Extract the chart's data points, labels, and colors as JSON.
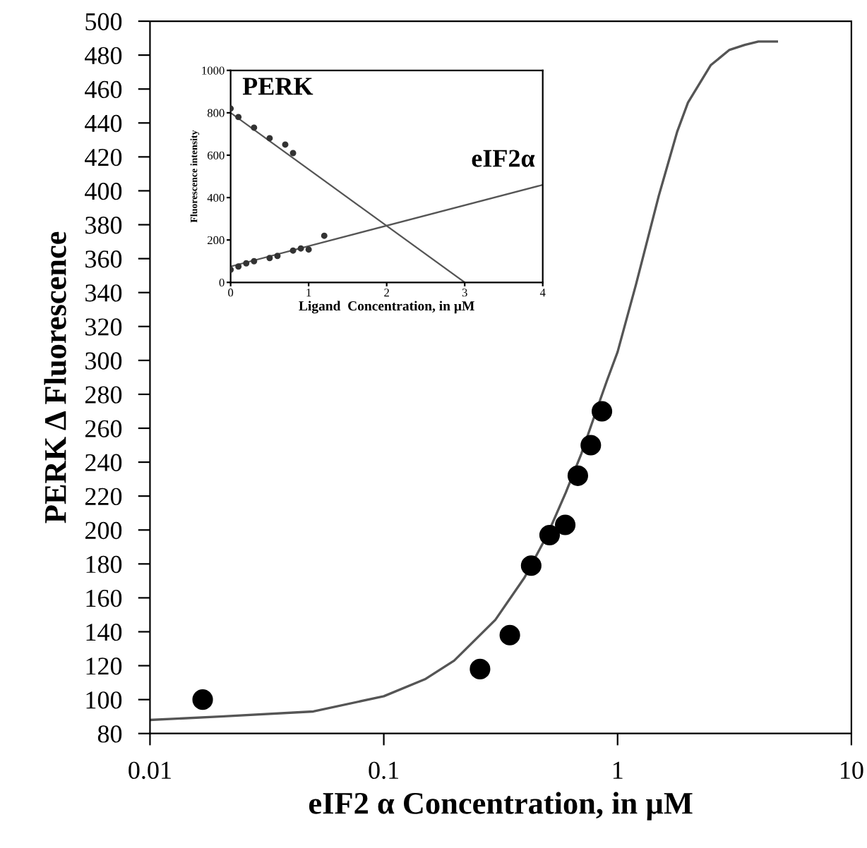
{
  "chart_data": [
    {
      "type": "scatter",
      "xlabel": "eIF2 α Concentration, in µM",
      "ylabel": "PERK Δ Fluorescence",
      "log": "x",
      "grid": false,
      "legend": false,
      "xlim": [
        0.01,
        10
      ],
      "xticks": [
        0.01,
        0.1,
        1,
        10
      ],
      "ylim": [
        80,
        500
      ],
      "yticks": [
        80,
        100,
        120,
        140,
        160,
        180,
        200,
        220,
        240,
        260,
        280,
        300,
        320,
        340,
        360,
        380,
        400,
        420,
        440,
        460,
        480,
        500
      ],
      "series": [
        {
          "color": "#000000",
          "marker": "circle",
          "x": [
            0.0168,
            0.258,
            0.346,
            0.427,
            0.512,
            0.597,
            0.676,
            0.768,
            0.857
          ],
          "values": [
            100,
            118,
            138,
            179,
            197,
            203,
            232,
            250,
            270
          ]
        },
        {
          "type": "line",
          "marker": "none",
          "color": "#555555",
          "x": [
            0.01,
            0.02,
            0.05,
            0.1,
            0.15,
            0.2,
            0.3,
            0.4,
            0.5,
            0.6,
            0.7,
            0.8,
            0.9,
            1.0,
            1.2,
            1.5,
            1.8,
            2.0,
            2.5,
            3.0,
            3.5,
            4.0,
            4.8
          ],
          "values": [
            88,
            90,
            93,
            102,
            112,
            123,
            147,
            172,
            197,
            222,
            245,
            268,
            288,
            305,
            345,
            397,
            435,
            452,
            474,
            483,
            486,
            488,
            488
          ]
        }
      ]
    },
    {
      "type": "scatter",
      "xlabel": "Ligand  Concentration, in µM",
      "ylabel": "Fluorescence intensity",
      "grid": false,
      "legend": false,
      "xlim": [
        0,
        4
      ],
      "xticks": [
        0,
        1,
        2,
        3,
        4
      ],
      "ylim": [
        0,
        1000
      ],
      "yticks": [
        0,
        200,
        400,
        600,
        800,
        1000
      ],
      "series": [
        {
          "color": "#333333",
          "marker": "circle",
          "x": [
            0,
            0.1,
            0.3,
            0.5,
            0.7,
            0.8
          ],
          "values": [
            820,
            780,
            730,
            680,
            650,
            610
          ]
        },
        {
          "color": "#333333",
          "marker": "circle",
          "x": [
            0,
            0.1,
            0.2,
            0.3,
            0.5,
            0.6,
            0.8,
            0.9,
            1.0,
            1.2
          ],
          "values": [
            60,
            75,
            90,
            100,
            115,
            125,
            150,
            160,
            155,
            220
          ]
        },
        {
          "type": "line",
          "marker": "none",
          "name": "PERK",
          "color": "#555555",
          "x": [
            0,
            3
          ],
          "values": [
            800,
            0
          ]
        },
        {
          "type": "line",
          "marker": "none",
          "name": "eIF2α",
          "color": "#555555",
          "x": [
            0,
            4
          ],
          "values": [
            75,
            460
          ]
        }
      ]
    }
  ]
}
